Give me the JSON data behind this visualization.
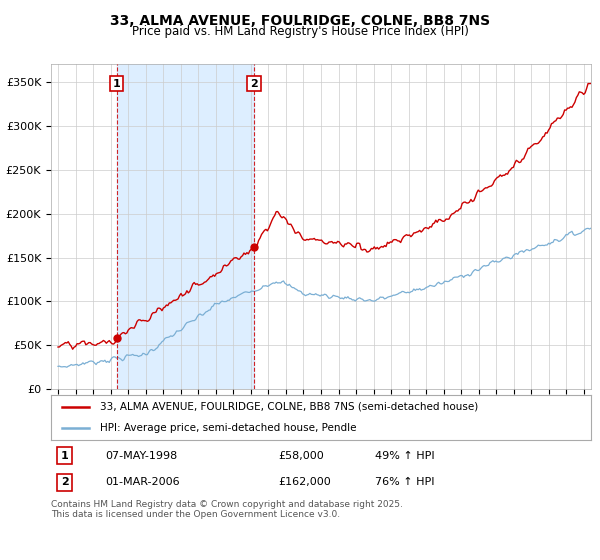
{
  "title": "33, ALMA AVENUE, FOULRIDGE, COLNE, BB8 7NS",
  "subtitle": "Price paid vs. HM Land Registry's House Price Index (HPI)",
  "ylabel_ticks": [
    "£0",
    "£50K",
    "£100K",
    "£150K",
    "£200K",
    "£250K",
    "£300K",
    "£350K"
  ],
  "ytick_values": [
    0,
    50000,
    100000,
    150000,
    200000,
    250000,
    300000,
    350000
  ],
  "ylim": [
    0,
    370000
  ],
  "xlim_start": 1994.6,
  "xlim_end": 2025.4,
  "red_color": "#cc0000",
  "blue_color": "#7bafd4",
  "shade_color": "#ddeeff",
  "purchase1_date": 1998.35,
  "purchase1_price": 58000,
  "purchase2_date": 2006.17,
  "purchase2_price": 162000,
  "legend_label_red": "33, ALMA AVENUE, FOULRIDGE, COLNE, BB8 7NS (semi-detached house)",
  "legend_label_blue": "HPI: Average price, semi-detached house, Pendle",
  "table_row1": [
    "1",
    "07-MAY-1998",
    "£58,000",
    "49% ↑ HPI"
  ],
  "table_row2": [
    "2",
    "01-MAR-2006",
    "£162,000",
    "76% ↑ HPI"
  ],
  "footer": "Contains HM Land Registry data © Crown copyright and database right 2025.\nThis data is licensed under the Open Government Licence v3.0.",
  "background_color": "#ffffff",
  "grid_color": "#cccccc"
}
